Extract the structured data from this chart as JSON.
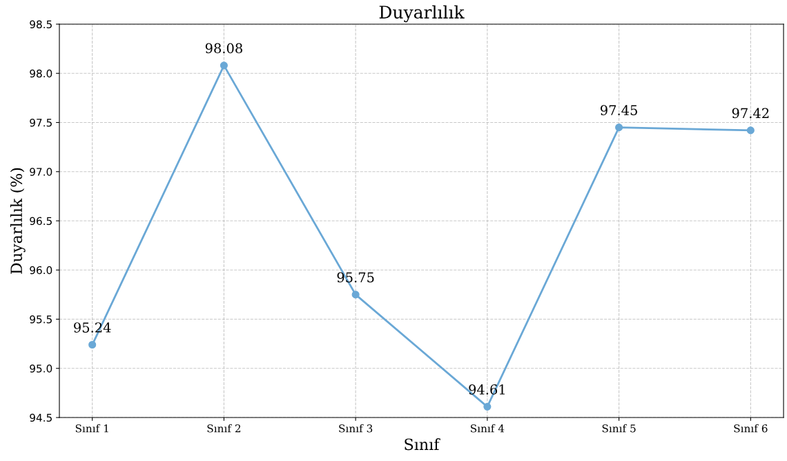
{
  "chart_data": {
    "type": "line",
    "title": "Duyarlılık",
    "xlabel": "Sınıf",
    "ylabel": "Duyarlılık (%)",
    "categories": [
      "Sınıf 1",
      "Sınıf 2",
      "Sınıf 3",
      "Sınıf 4",
      "Sınıf 5",
      "Sınıf 6"
    ],
    "series": [
      {
        "color": "#6aa8d6",
        "values": [
          95.24,
          98.08,
          95.75,
          94.61,
          97.45,
          97.42
        ]
      }
    ],
    "ylim": [
      94.5,
      98.5
    ],
    "yticks": [
      {
        "value": 94.5,
        "label": "94.5"
      },
      {
        "value": 95.0,
        "label": "95.0"
      },
      {
        "value": 95.5,
        "label": "95.5"
      },
      {
        "value": 96.0,
        "label": "96.0"
      },
      {
        "value": 96.5,
        "label": "96.5"
      },
      {
        "value": 97.0,
        "label": "97.0"
      },
      {
        "value": 97.5,
        "label": "97.5"
      },
      {
        "value": 98.0,
        "label": "98.0"
      },
      {
        "value": 98.5,
        "label": "98.5"
      }
    ],
    "grid": true,
    "marker": "circle",
    "line_style": "solid",
    "data_labels": true
  }
}
